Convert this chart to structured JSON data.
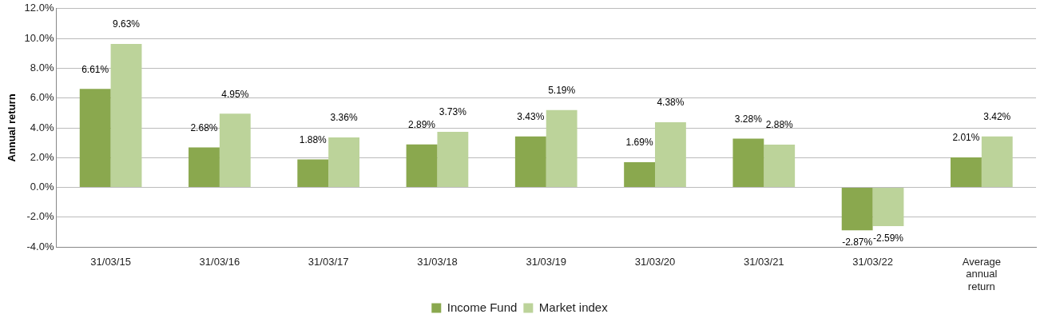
{
  "chart_data": {
    "type": "bar",
    "ylabel": "Annual return",
    "categories": [
      "31/03/15",
      "31/03/16",
      "31/03/17",
      "31/03/18",
      "31/03/19",
      "31/03/20",
      "31/03/21",
      "31/03/22",
      "Average annual return"
    ],
    "series": [
      {
        "name": "Income Fund",
        "color": "#8aa84e",
        "values": [
          6.61,
          2.68,
          1.88,
          2.89,
          3.43,
          1.69,
          3.28,
          -2.87,
          2.01
        ],
        "value_labels": [
          "6.61%",
          "2.68%",
          "1.88%",
          "2.89%",
          "3.43%",
          "1.69%",
          "3.28%",
          "-2.87%",
          "2.01%"
        ]
      },
      {
        "name": "Market index",
        "color": "#bcd39a",
        "values": [
          9.63,
          4.95,
          3.36,
          3.73,
          5.19,
          4.38,
          2.88,
          -2.59,
          3.42
        ],
        "value_labels": [
          "9.63%",
          "4.95%",
          "3.36%",
          "3.73%",
          "5.19%",
          "4.38%",
          "2.88%",
          "-2.59%",
          "3.42%"
        ]
      }
    ],
    "ylim": [
      -4,
      12
    ],
    "yticks": [
      {
        "value": -4,
        "label": "-4.0%"
      },
      {
        "value": -2,
        "label": "-2.0%"
      },
      {
        "value": 0,
        "label": "0.0%"
      },
      {
        "value": 2,
        "label": "2.0%"
      },
      {
        "value": 4,
        "label": "4.0%"
      },
      {
        "value": 6,
        "label": "6.0%"
      },
      {
        "value": 8,
        "label": "8.0%"
      },
      {
        "value": 10,
        "label": "10.0%"
      },
      {
        "value": 12,
        "label": "12.0%"
      }
    ],
    "grid": "y",
    "legend": "bottom"
  }
}
